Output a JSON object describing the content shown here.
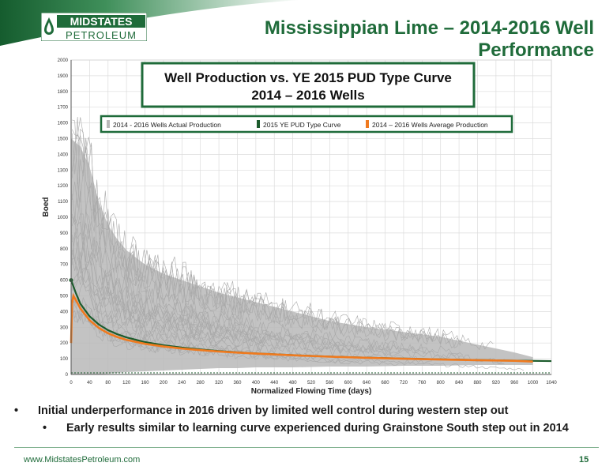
{
  "header": {
    "logo_top": "MIDSTATES",
    "logo_bottom": "PETROLEUM",
    "title": "Mississippian Lime – 2014-2016 Well Performance"
  },
  "colors": {
    "brand_green": "#1f6b3a",
    "actual_gray": "#b9b9b9",
    "type_curve": "#1c5b2c",
    "average_orange": "#f07a1e"
  },
  "chart_data": {
    "type": "line",
    "title_line1": "Well Production vs. YE 2015 PUD Type Curve",
    "title_line2": "2014 – 2016 Wells",
    "xlabel": "Normalized Flowing Time (days)",
    "ylabel": "Boed",
    "xlim": [
      0,
      1040
    ],
    "ylim": [
      0,
      2000
    ],
    "x_ticks": [
      0,
      40,
      80,
      120,
      160,
      200,
      240,
      280,
      320,
      360,
      400,
      440,
      480,
      520,
      560,
      600,
      640,
      680,
      720,
      760,
      800,
      840,
      880,
      920,
      960,
      1000,
      1040
    ],
    "y_ticks": [
      0,
      100,
      200,
      300,
      400,
      500,
      600,
      700,
      800,
      900,
      1000,
      1100,
      1200,
      1300,
      1400,
      1500,
      1600,
      1700,
      1800,
      1900,
      2000
    ],
    "legend": [
      {
        "label": "2014 - 2016 Wells Actual Production",
        "color": "#b9b9b9"
      },
      {
        "label": "2015 YE PUD Type Curve",
        "color": "#1c5b2c"
      },
      {
        "label": "2014 – 2016 Wells Average Production",
        "color": "#f07a1e"
      }
    ],
    "series": [
      {
        "name": "2015 YE PUD Type Curve",
        "color": "#1c5b2c",
        "x": [
          0,
          10,
          20,
          40,
          60,
          80,
          100,
          120,
          160,
          200,
          240,
          280,
          320,
          360,
          400,
          480,
          560,
          640,
          720,
          800,
          880,
          960,
          1040
        ],
        "y": [
          600,
          520,
          450,
          370,
          318,
          282,
          256,
          236,
          206,
          186,
          171,
          159,
          149,
          141,
          134,
          123,
          114,
          107,
          101,
          96,
          92,
          88,
          85
        ]
      },
      {
        "name": "2014 – 2016 Wells Average Production",
        "color": "#f07a1e",
        "x": [
          0,
          2,
          5,
          10,
          20,
          40,
          60,
          80,
          100,
          120,
          160,
          200,
          240,
          280,
          320,
          360,
          400,
          480,
          560,
          640,
          720,
          800,
          880,
          960,
          1000
        ],
        "y": [
          200,
          450,
          500,
          475,
          420,
          345,
          296,
          262,
          238,
          220,
          195,
          178,
          165,
          155,
          146,
          139,
          133,
          122,
          113,
          106,
          100,
          95,
          91,
          87,
          82
        ]
      }
    ],
    "gray_envelope": {
      "x": [
        0,
        20,
        40,
        60,
        80,
        100,
        120,
        160,
        200,
        240,
        280,
        320,
        360,
        400,
        480,
        560,
        640,
        720,
        800,
        880,
        960,
        1000
      ],
      "upper": [
        1500,
        1450,
        1320,
        1100,
        950,
        860,
        790,
        700,
        640,
        600,
        560,
        520,
        490,
        460,
        400,
        340,
        300,
        270,
        240,
        190,
        140,
        110
      ],
      "lower": [
        0,
        0,
        0,
        0,
        5,
        10,
        15,
        20,
        25,
        30,
        35,
        40,
        40,
        45,
        45,
        50,
        50,
        55,
        55,
        60,
        60,
        60
      ]
    },
    "reference_line_y": 10
  },
  "bullets": {
    "item1": "Initial underperformance in 2016 driven by limited well control during western step out",
    "item2": "Early results similar to learning curve experienced during Grainstone South step out in 2014",
    "bullet_char": "•"
  },
  "footer": {
    "url": "www.MidstatesPetroleum.com",
    "page": "15"
  }
}
